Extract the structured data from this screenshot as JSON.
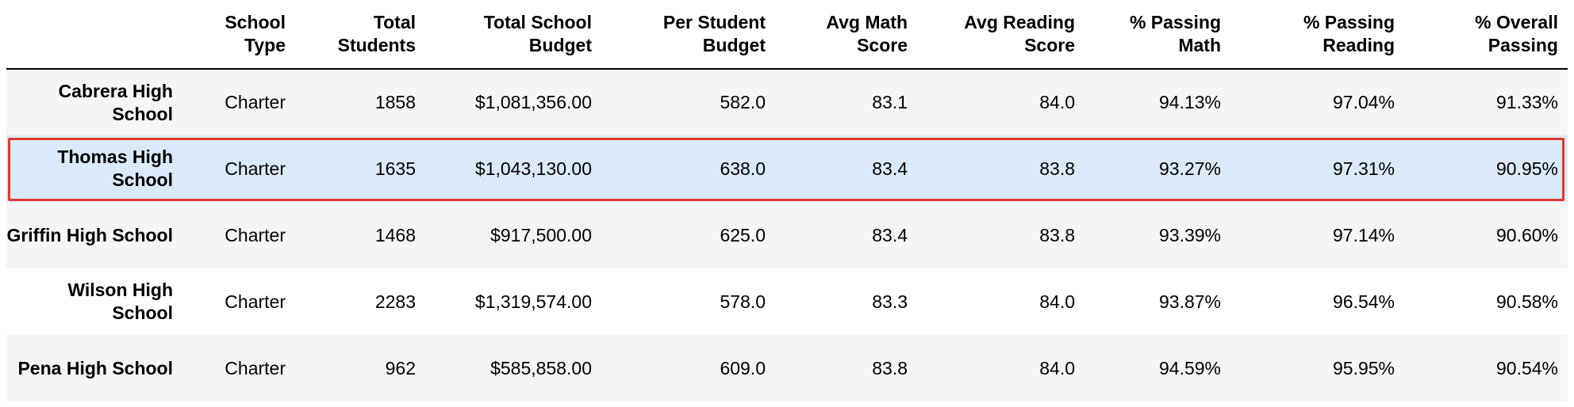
{
  "table": {
    "columns": [
      "",
      "School Type",
      "Total Students",
      "Total School Budget",
      "Per Student Budget",
      "Avg Math Score",
      "Avg Reading Score",
      "% Passing Math",
      "% Passing Reading",
      "% Overall Passing"
    ],
    "rows": [
      {
        "name": "Cabrera High School",
        "type": "Charter",
        "students": "1858",
        "budget": "$1,081,356.00",
        "per_student": "582.0",
        "math": "83.1",
        "reading": "84.0",
        "pass_math": "94.13%",
        "pass_reading": "97.04%",
        "overall": "91.33%"
      },
      {
        "name": "Thomas High School",
        "type": "Charter",
        "students": "1635",
        "budget": "$1,043,130.00",
        "per_student": "638.0",
        "math": "83.4",
        "reading": "83.8",
        "pass_math": "93.27%",
        "pass_reading": "97.31%",
        "overall": "90.95%"
      },
      {
        "name": "Griffin High School",
        "type": "Charter",
        "students": "1468",
        "budget": "$917,500.00",
        "per_student": "625.0",
        "math": "83.4",
        "reading": "83.8",
        "pass_math": "93.39%",
        "pass_reading": "97.14%",
        "overall": "90.60%"
      },
      {
        "name": "Wilson High School",
        "type": "Charter",
        "students": "2283",
        "budget": "$1,319,574.00",
        "per_student": "578.0",
        "math": "83.3",
        "reading": "84.0",
        "pass_math": "93.87%",
        "pass_reading": "96.54%",
        "overall": "90.58%"
      },
      {
        "name": "Pena High School",
        "type": "Charter",
        "students": "962",
        "budget": "$585,858.00",
        "per_student": "609.0",
        "math": "83.8",
        "reading": "84.0",
        "pass_math": "94.59%",
        "pass_reading": "95.95%",
        "overall": "90.54%"
      }
    ]
  },
  "colors": {
    "selected_row_bg": "#dbeaf8",
    "selection_border": "#e0372d",
    "stripe_bg": "#f5f5f5"
  }
}
